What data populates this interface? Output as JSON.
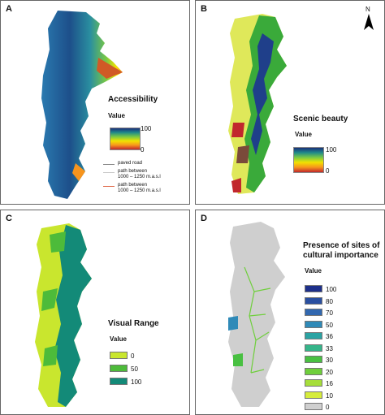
{
  "panels": {
    "a": {
      "letter": "A",
      "title": "Accessibility",
      "value_label": "Value",
      "max": "100",
      "min": "0",
      "ramp_colors": [
        "#1a2f7a",
        "#1f8a8a",
        "#7ac943",
        "#f2e200",
        "#f7941d",
        "#c1272d"
      ],
      "lines": [
        {
          "label": "paved road",
          "color": "#888888"
        },
        {
          "label": "path between",
          "label2": "1000 – 1250 m.a.s.l",
          "color": "#c8c8c8"
        },
        {
          "label": "path between",
          "label2": "1000 – 1250 m.a.s.l",
          "color": "#e06a4a"
        }
      ]
    },
    "b": {
      "letter": "B",
      "title": "Scenic beauty",
      "value_label": "Value",
      "max": "100",
      "min": "0",
      "north": "N"
    },
    "c": {
      "letter": "C",
      "title": "Visual Range",
      "value_label": "Value",
      "classes": [
        {
          "label": "0",
          "color": "#c9e62e"
        },
        {
          "label": "50",
          "color": "#4dbb3a"
        },
        {
          "label": "100",
          "color": "#138a78"
        }
      ]
    },
    "d": {
      "letter": "D",
      "title_line1": "Presence of sites of",
      "title_line2": "cultural importance",
      "value_label": "Value",
      "classes": [
        {
          "label": "100",
          "color": "#1d2f8a"
        },
        {
          "label": "80",
          "color": "#2a4fa0"
        },
        {
          "label": "70",
          "color": "#3268b0"
        },
        {
          "label": "50",
          "color": "#2f8ab8"
        },
        {
          "label": "36",
          "color": "#2aa3a3"
        },
        {
          "label": "33",
          "color": "#35b58a"
        },
        {
          "label": "30",
          "color": "#49c042"
        },
        {
          "label": "20",
          "color": "#6fcf3c"
        },
        {
          "label": "16",
          "color": "#a6de3a"
        },
        {
          "label": "10",
          "color": "#d6ec3c"
        },
        {
          "label": "0",
          "color": "#cfcfcf"
        }
      ]
    }
  }
}
